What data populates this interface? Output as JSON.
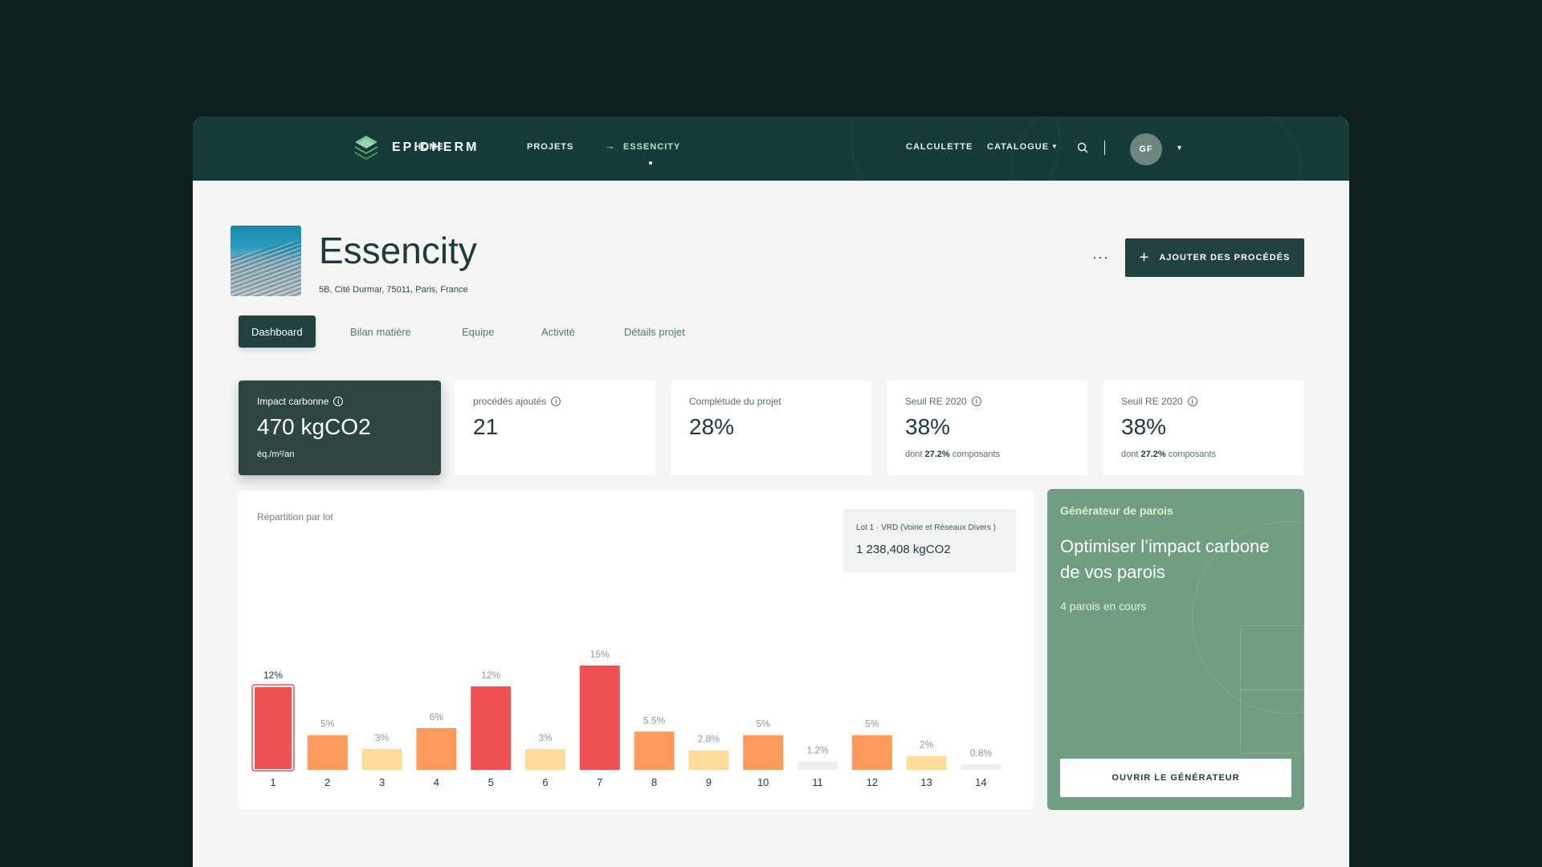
{
  "nav": {
    "brand": "EPIDHERM",
    "home": "HOME",
    "projects": "PROJETS",
    "arrow": "→",
    "current": "ESSENCITY",
    "calculette": "CALCULETTE",
    "catalogue": "CATALOGUE",
    "avatar_initials": "GF"
  },
  "project": {
    "title": "Essencity",
    "address": "5B, Cité Durmar, 75011, Paris, France",
    "more": "···",
    "add_button": "AJOUTER DES PROCÉDÉS"
  },
  "tabs": [
    "Dashboard",
    "Bilan matière",
    "Equipe",
    "Activité",
    "Détails projet"
  ],
  "cards": [
    {
      "label": "Impact carbonne",
      "value": "470 kgCO2",
      "sub": "éq./m²/an"
    },
    {
      "label": "procédés ajoutés",
      "value": "21"
    },
    {
      "label": "Complétude du projet",
      "value": "28%"
    },
    {
      "label": "Seuil RE 2020",
      "value": "38%",
      "sub_prefix": "dont",
      "sub_bold": "27.2%",
      "sub_suffix": "composants"
    },
    {
      "label": "Seuil RE 2020",
      "value": "38%",
      "sub_prefix": "dont",
      "sub_bold": "27.2%",
      "sub_suffix": "composants"
    }
  ],
  "chart_panel": {
    "title": "Répartition par lot",
    "tooltip_label": "Lot 1 · VRD (Voirie et Réseaux Divers )",
    "tooltip_value": "1 238,408 kgCO2"
  },
  "chart_data": {
    "type": "bar",
    "categories": [
      "1",
      "2",
      "3",
      "4",
      "5",
      "6",
      "7",
      "8",
      "9",
      "10",
      "11",
      "12",
      "13",
      "14"
    ],
    "values": [
      12,
      5,
      3,
      6,
      12,
      3,
      15,
      5.5,
      2.8,
      5,
      1.2,
      5,
      2,
      0.8
    ],
    "labels": [
      "12%",
      "5%",
      "3%",
      "6%",
      "12%",
      "3%",
      "15%",
      "5.5%",
      "2.8%",
      "5%",
      "1.2%",
      "5%",
      "2%",
      "0.8%"
    ],
    "selected_index": 0,
    "ylim": [
      0,
      15
    ],
    "colors": {
      "high": "#f05155",
      "mid": "#fb9a5c",
      "low": "#fddb9a",
      "none": "#eeeeee"
    },
    "grid": false
  },
  "generator": {
    "kicker": "Générateur de parois",
    "heading": "Optimiser l’impact carbone de vos parois",
    "count": "4 parois en cours",
    "button": "OUVRIR LE GÉNÉRATEUR"
  },
  "colors": {
    "nav_bg": "#163b39",
    "accent_dark": "#22413f",
    "generator_bg": "#719e82"
  }
}
